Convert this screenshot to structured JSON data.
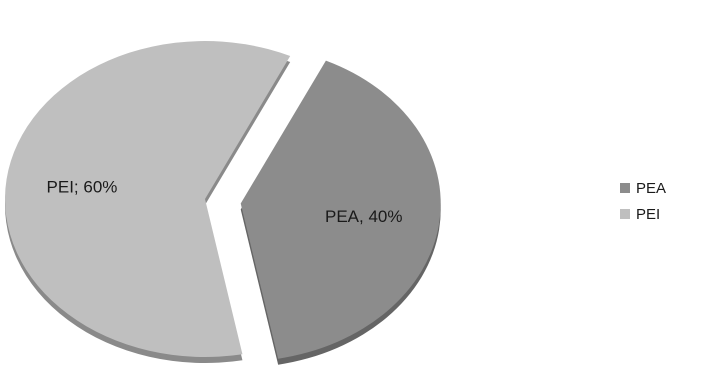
{
  "chart_data": {
    "type": "pie",
    "categories": [
      "PEA",
      "PEI"
    ],
    "values": [
      40,
      60
    ],
    "labels": [
      "PEA, 40%",
      "PEI; 60%"
    ],
    "colors": [
      "#8c8c8c",
      "#bfbfbf"
    ],
    "exploded": "PEA",
    "legend": {
      "position": "right",
      "items": [
        {
          "name": "PEA",
          "color": "#8c8c8c"
        },
        {
          "name": "PEI",
          "color": "#bfbfbf"
        }
      ]
    }
  }
}
